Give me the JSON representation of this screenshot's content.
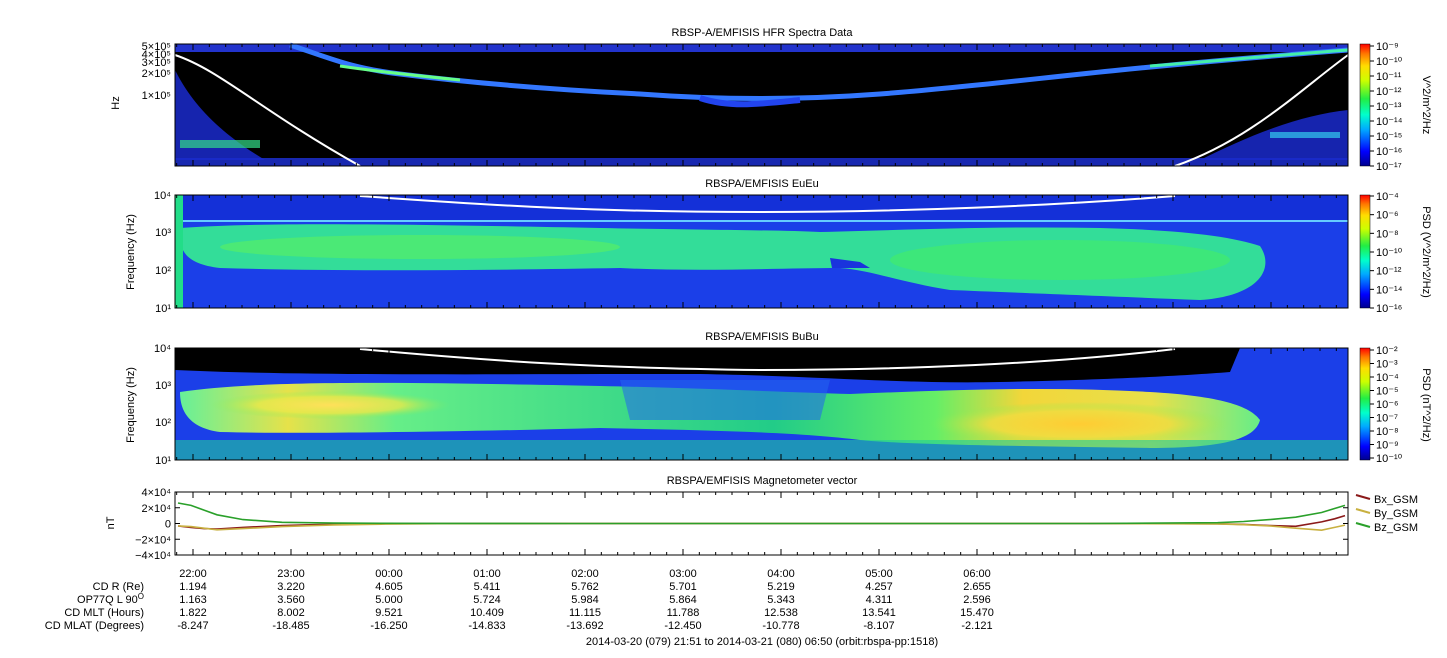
{
  "chart_data": [
    {
      "type": "heatmap",
      "title": "RBSP-A/EMFISIS  HFR Spectra Data",
      "ylabel": "Hz",
      "y_scale": "log",
      "y_ticks": [
        "5×10⁵",
        "4×10⁵",
        "3×10⁵",
        "2×10⁵",
        "1×10⁵"
      ],
      "colorbar": {
        "label": "V^2/m^2/Hz",
        "scale": "log",
        "ticks": [
          "10⁻⁹",
          "10⁻¹⁰",
          "10⁻¹¹",
          "10⁻¹²",
          "10⁻¹³",
          "10⁻¹⁴",
          "10⁻¹⁵",
          "10⁻¹⁶",
          "10⁻¹⁷"
        ]
      }
    },
    {
      "type": "heatmap",
      "title": "RBSPA/EMFISIS  EuEu",
      "ylabel": "Frequency (Hz)",
      "y_scale": "log",
      "y_ticks": [
        "10⁴",
        "10³",
        "10²",
        "10¹"
      ],
      "colorbar": {
        "label": "PSD (V^2/m^2/Hz)",
        "scale": "log",
        "ticks": [
          "10⁻⁴",
          "10⁻⁶",
          "10⁻⁸",
          "10⁻¹⁰",
          "10⁻¹²",
          "10⁻¹⁴",
          "10⁻¹⁶"
        ]
      }
    },
    {
      "type": "heatmap",
      "title": "RBSPA/EMFISIS  BuBu",
      "ylabel": "Frequency (Hz)",
      "y_scale": "log",
      "y_ticks": [
        "10⁴",
        "10³",
        "10²",
        "10¹"
      ],
      "colorbar": {
        "label": "PSD (nT^2/Hz)",
        "scale": "log",
        "ticks": [
          "10⁻²",
          "10⁻³",
          "10⁻⁴",
          "10⁻⁵",
          "10⁻⁶",
          "10⁻⁷",
          "10⁻⁸",
          "10⁻⁹",
          "10⁻¹⁰"
        ]
      }
    },
    {
      "type": "line",
      "title": "RBSPA/EMFISIS  Magnetometer vector",
      "ylabel": "nT",
      "ylim": [
        -40000,
        40000
      ],
      "y_ticks": [
        {
          "value": 40000,
          "label": "4×10⁴"
        },
        {
          "value": 20000,
          "label": "2×10⁴"
        },
        {
          "value": 0,
          "label": "0"
        },
        {
          "value": -20000,
          "label": "−2×10⁴"
        },
        {
          "value": -40000,
          "label": "−4×10⁴"
        }
      ],
      "x_hours": [
        0,
        0.1,
        0.2,
        0.3,
        0.5,
        0.8,
        1.2,
        1.6,
        2.0,
        3.0,
        4.0,
        5.0,
        6.0,
        7.0,
        8.0,
        8.2,
        8.4,
        8.6,
        8.8,
        8.9,
        8.98
      ],
      "series": [
        {
          "name": "Bx_GSM",
          "color": "#8b1a1a",
          "values": [
            -3000,
            -5000,
            -6500,
            -7000,
            -5000,
            -2500,
            -900,
            -300,
            -100,
            0,
            0,
            0,
            0,
            0,
            -400,
            -1200,
            -2500,
            -3500,
            2000,
            6000,
            10000
          ]
        },
        {
          "name": "By_GSM",
          "color": "#c8b040",
          "values": [
            -3000,
            -4000,
            -6000,
            -8000,
            -6500,
            -4000,
            -1800,
            -800,
            -300,
            0,
            0,
            0,
            0,
            0,
            -500,
            -1500,
            -3000,
            -6000,
            -8500,
            -5000,
            -2000
          ]
        },
        {
          "name": "Bz_GSM",
          "color": "#2aa02a",
          "values": [
            26000,
            23000,
            17000,
            11000,
            5000,
            1500,
            500,
            200,
            100,
            0,
            0,
            0,
            0,
            0,
            1000,
            2500,
            5000,
            8000,
            14000,
            19000,
            23000
          ]
        }
      ]
    }
  ],
  "x_axis": {
    "tick_labels": [
      "22:00",
      "23:00",
      "00:00",
      "01:00",
      "02:00",
      "03:00",
      "04:00",
      "05:00",
      "06:00"
    ]
  },
  "ephemeris": {
    "rows": [
      {
        "label": "CD R (Re)",
        "values": [
          "1.194",
          "3.220",
          "4.605",
          "5.411",
          "5.762",
          "5.701",
          "5.219",
          "4.257",
          "2.655"
        ]
      },
      {
        "label": "OP77Q L 90",
        "sup": "O",
        "values": [
          "1.163",
          "3.560",
          "5.000",
          "5.724",
          "5.984",
          "5.864",
          "5.343",
          "4.311",
          "2.596"
        ]
      },
      {
        "label": "CD MLT (Hours)",
        "values": [
          "1.822",
          "8.002",
          "9.521",
          "10.409",
          "11.115",
          "11.788",
          "12.538",
          "13.541",
          "15.470"
        ]
      },
      {
        "label": "CD MLAT (Degrees)",
        "values": [
          "-8.247",
          "-18.485",
          "-16.250",
          "-14.833",
          "-13.692",
          "-12.450",
          "-10.778",
          "-8.107",
          "-2.121"
        ]
      }
    ]
  },
  "footer": "2014-03-20 (079) 21:51 to 2014-03-21 (080) 06:50 (orbit:rbspa-pp:1518)"
}
